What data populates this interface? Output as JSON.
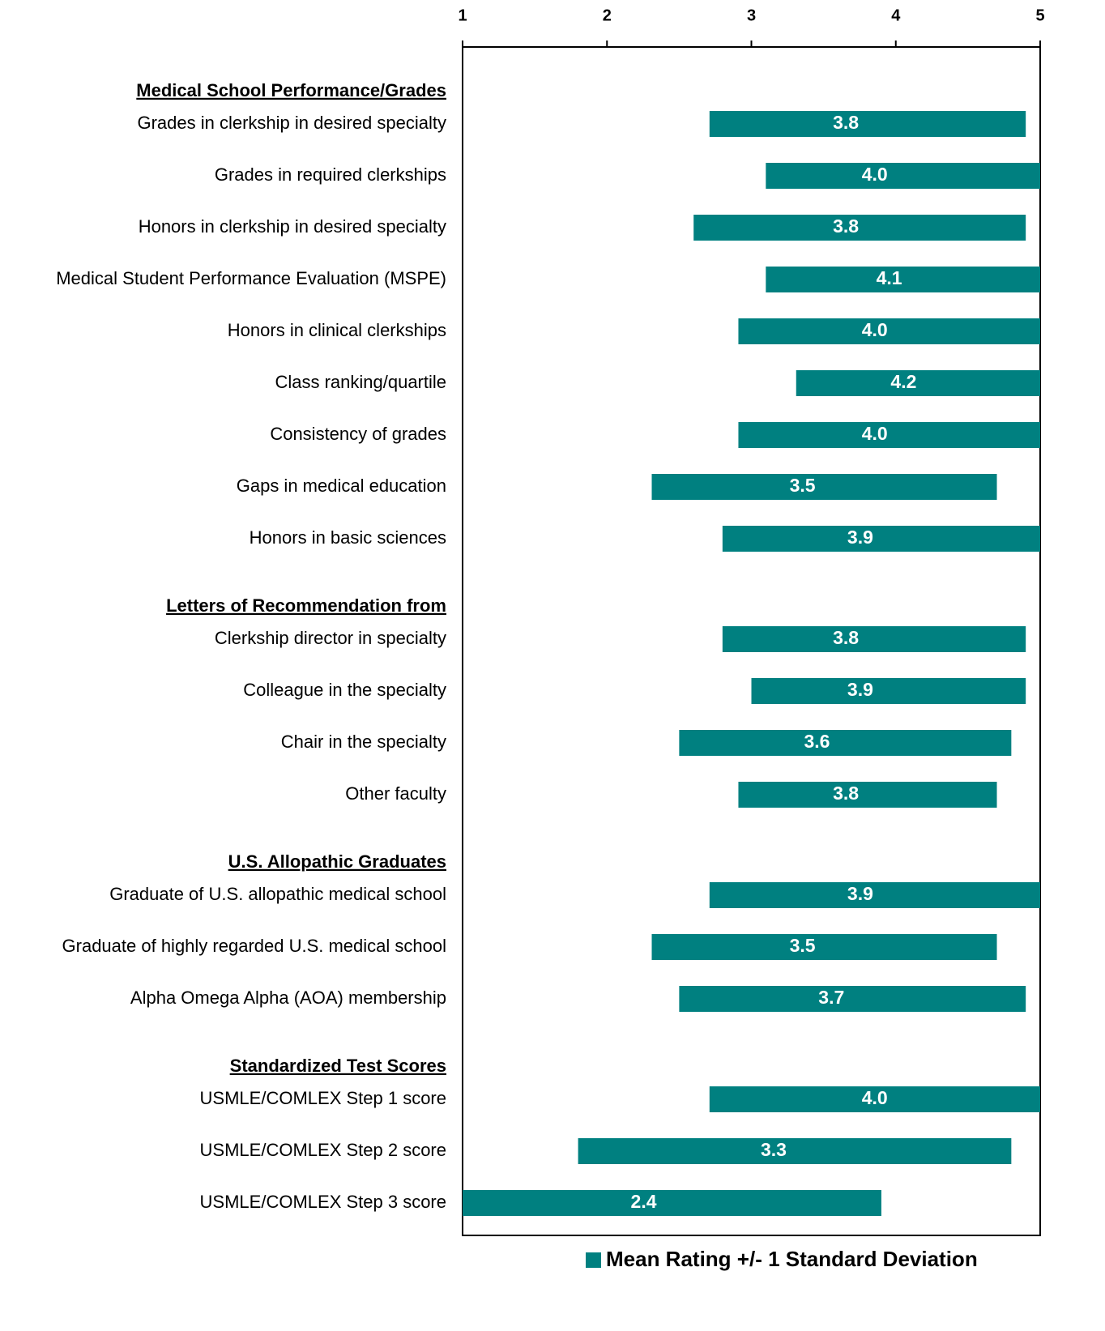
{
  "chart_data": {
    "type": "range-bar",
    "color": "#008080",
    "legend": "Mean Rating +/- 1 Standard Deviation",
    "xlim": [
      1,
      5
    ],
    "xticks": [
      1,
      2,
      3,
      4,
      5
    ],
    "groups": [
      {
        "name": "Medical School Performance/Grades",
        "categories": [
          "Grades in clerkship in desired specialty",
          "Grades in required clerkships",
          "Honors in clerkship in desired specialty",
          "Medical Student Performance Evaluation (MSPE)",
          "Honors in clinical clerkships",
          "Class ranking/quartile",
          "Consistency of grades",
          "Gaps in medical education",
          "Honors in basic sciences"
        ],
        "low": [
          2.71,
          3.1,
          2.6,
          3.1,
          2.91,
          3.31,
          2.91,
          2.31,
          2.8
        ],
        "high": [
          4.9,
          5.0,
          4.9,
          5.0,
          5.0,
          5.0,
          5.0,
          4.7,
          5.0
        ],
        "values": [
          3.8,
          4.0,
          3.8,
          4.1,
          4.0,
          4.2,
          4.0,
          3.5,
          3.9
        ],
        "value_labels": [
          "3.8",
          "4.0",
          "3.8",
          "4.1",
          "4.0",
          "4.2",
          "4.0",
          "3.5",
          "3.9"
        ]
      },
      {
        "name": "Letters of Recommendation from",
        "categories": [
          "Clerkship director in specialty",
          "Colleague in the specialty",
          "Chair in the specialty",
          "Other faculty"
        ],
        "low": [
          2.8,
          3.0,
          2.5,
          2.91
        ],
        "high": [
          4.9,
          4.9,
          4.8,
          4.7
        ],
        "values": [
          3.8,
          3.9,
          3.6,
          3.8
        ],
        "value_labels": [
          "3.8",
          "3.9",
          "3.6",
          "3.8"
        ]
      },
      {
        "name": "U.S. Allopathic Graduates",
        "categories": [
          "Graduate of U.S. allopathic medical school",
          "Graduate of highly regarded U.S. medical school",
          "Alpha Omega Alpha (AOA) membership"
        ],
        "low": [
          2.71,
          2.31,
          2.5
        ],
        "high": [
          5.0,
          4.7,
          4.9
        ],
        "values": [
          3.9,
          3.5,
          3.7
        ],
        "value_labels": [
          "3.9",
          "3.5",
          "3.7"
        ]
      },
      {
        "name": "Standardized Test Scores",
        "categories": [
          "USMLE/COMLEX Step 1 score",
          "USMLE/COMLEX Step 2 score",
          "USMLE/COMLEX Step 3 score"
        ],
        "low": [
          2.71,
          1.8,
          1.0
        ],
        "high": [
          5.0,
          4.8,
          3.9
        ],
        "values": [
          4.0,
          3.3,
          2.4
        ],
        "value_labels": [
          "4.0",
          "3.3",
          "2.4"
        ]
      }
    ]
  }
}
